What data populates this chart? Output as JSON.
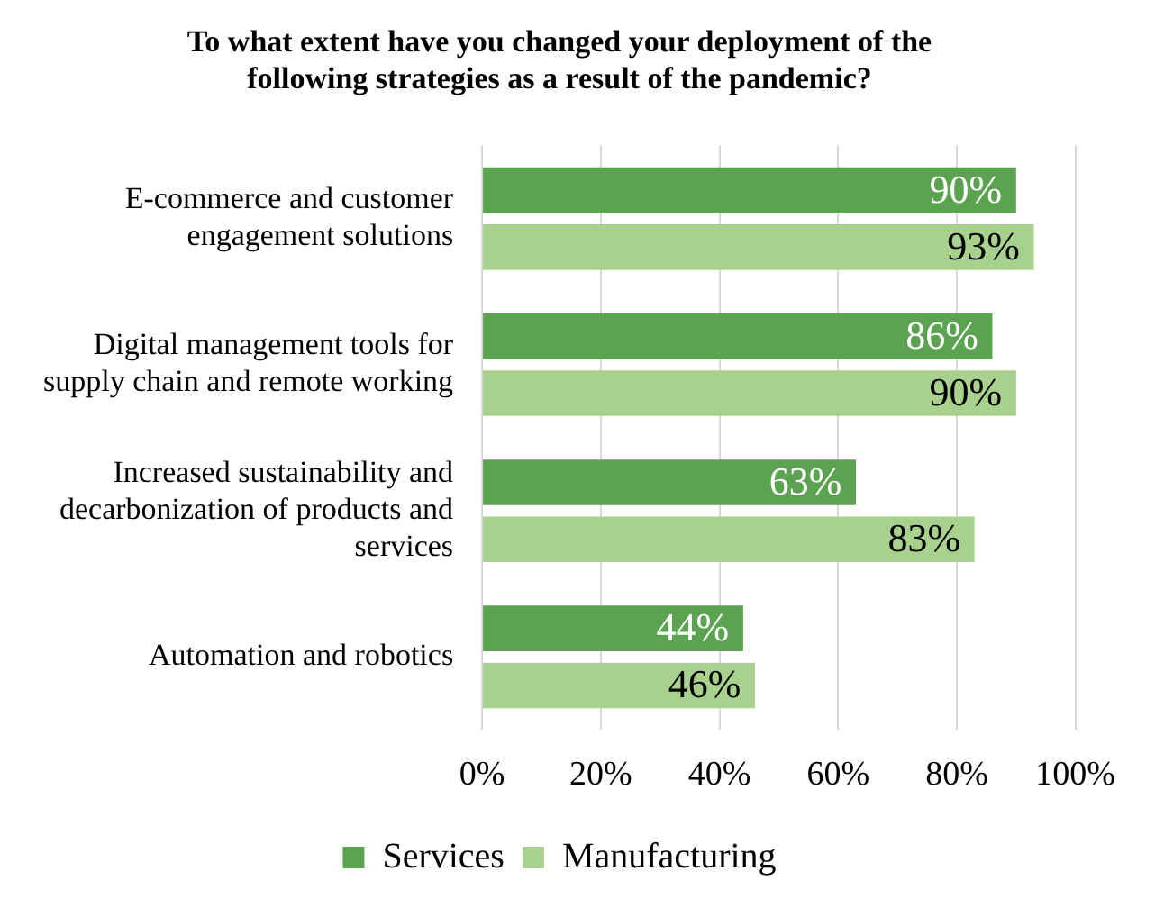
{
  "chart_data": {
    "type": "bar",
    "orientation": "horizontal",
    "title": "To what extent have you changed your deployment of the following strategies as a result of the pandemic?",
    "categories": [
      "E-commerce and customer engagement solutions",
      "Digital management tools for supply chain and remote working",
      "Increased sustainability and decarbonization of products and services",
      "Automation and robotics"
    ],
    "series": [
      {
        "name": "Services",
        "color": "#5ba350",
        "values": [
          90,
          86,
          63,
          44
        ],
        "value_labels": [
          "90%",
          "86%",
          "63%",
          "44%"
        ]
      },
      {
        "name": "Manufacturing",
        "color": "#a9d18e",
        "values": [
          93,
          90,
          83,
          46
        ],
        "value_labels": [
          "93%",
          "90%",
          "83%",
          "46%"
        ]
      }
    ],
    "xlim": [
      0,
      100
    ],
    "xticks": [
      {
        "value": 0,
        "label": "0%"
      },
      {
        "value": 20,
        "label": "20%"
      },
      {
        "value": 40,
        "label": "40%"
      },
      {
        "value": 60,
        "label": "60%"
      },
      {
        "value": 80,
        "label": "80%"
      },
      {
        "value": 100,
        "label": "100%"
      }
    ],
    "grid": "x",
    "legend": "bottom"
  }
}
